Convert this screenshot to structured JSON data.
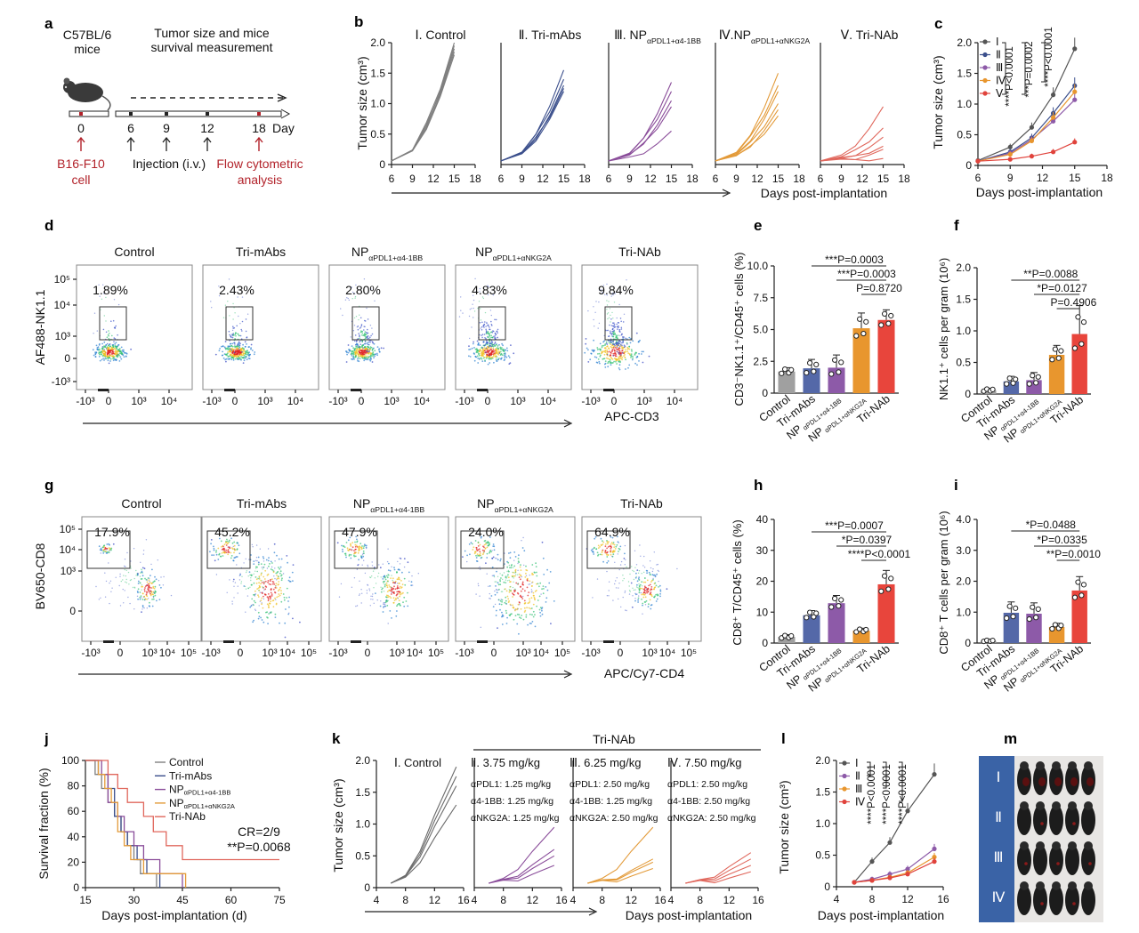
{
  "panels": {
    "a": {
      "letter": "a",
      "mouse_strain": [
        "C57BL/6",
        "mice"
      ],
      "measure_text": [
        "Tumor size and mice",
        "survival measurement"
      ],
      "days": [
        "0",
        "6",
        "9",
        "12",
        "18"
      ],
      "day_unit": "Day",
      "cell_label": [
        "B16-F10",
        "cell"
      ],
      "injection_label": "Injection (i.v.)",
      "flow_label": [
        "Flow cytometric",
        "analysis"
      ],
      "colors": {
        "accent": "#b2222a"
      }
    },
    "b": {
      "letter": "b",
      "ylabel": "Tumor size (cm³)",
      "xlabel": "Days post-implantation",
      "xticks": [
        "6",
        "9",
        "12",
        "15",
        "18"
      ],
      "yticks": [
        "0",
        "0.5",
        "1.0",
        "1.5",
        "2.0"
      ],
      "groups": [
        {
          "title": "Ⅰ. Control",
          "color": "#7f7f7f"
        },
        {
          "title": "Ⅱ. Tri-mAbs",
          "color": "#3b4f8c"
        },
        {
          "title": "Ⅲ. NP",
          "sub": "αPDL1+α4-1BB",
          "color": "#8a4d9a"
        },
        {
          "title": "Ⅳ.NP",
          "sub": "αPDL1+αNKG2A",
          "color": "#e39b3a"
        },
        {
          "title": "Ⅴ. Tri-NAb",
          "color": "#e0675c"
        }
      ]
    },
    "c": {
      "letter": "c",
      "ylabel": "Tumor size (cm³)",
      "xlabel": "Days post-implantation",
      "xticks": [
        "6",
        "9",
        "12",
        "15",
        "18"
      ],
      "yticks": [
        "0",
        "0.5",
        "1.0",
        "1.5",
        "2.0"
      ],
      "legend": [
        "Ⅰ",
        "Ⅱ",
        "Ⅲ",
        "Ⅳ",
        "Ⅴ"
      ],
      "stats": [
        "****P<0.0001",
        "***P=0.0002",
        "****P<0.0001"
      ]
    },
    "d": {
      "letter": "d",
      "plots": [
        {
          "title": "Control",
          "pct": "1.89%"
        },
        {
          "title": "Tri-mAbs",
          "pct": "2.43%"
        },
        {
          "title": "NP",
          "sub": "αPDL1+α4-1BB",
          "pct": "2.80%"
        },
        {
          "title": "NP",
          "sub": "αPDL1+αNKG2A",
          "pct": "4.83%"
        },
        {
          "title": "Tri-NAb",
          "pct": "9.84%"
        }
      ],
      "ylabel": "AF488-NK1.1",
      "xlabel": "APC-CD3",
      "yticks": [
        "10⁵",
        "10⁴",
        "10³",
        "0",
        "-10³"
      ],
      "xticks": [
        "-10³",
        "0",
        "10³",
        "10⁴"
      ]
    },
    "e": {
      "letter": "e",
      "ylabel": "CD3⁻NK1.1⁺/CD45⁺ cells (%)",
      "yticks": [
        "0",
        "2.5",
        "5.0",
        "7.5",
        "10.0"
      ],
      "stats": [
        "***P=0.0003",
        "***P=0.0003",
        "P=0.8720"
      ]
    },
    "f": {
      "letter": "f",
      "ylabel": "NK1.1⁺ cells per gram (10⁶)",
      "yticks": [
        "0",
        "0.5",
        "1.0",
        "1.5",
        "2.0"
      ],
      "stats": [
        "**P=0.0088",
        "*P=0.0127",
        "P=0.4906"
      ]
    },
    "g": {
      "letter": "g",
      "plots": [
        {
          "title": "Control",
          "pct": "17.9%"
        },
        {
          "title": "Tri-mAbs",
          "pct": "45.2%"
        },
        {
          "title": "NP",
          "sub": "αPDL1+α4-1BB",
          "pct": "47.9%"
        },
        {
          "title": "NP",
          "sub": "αPDL1+αNKG2A",
          "pct": "24.0%"
        },
        {
          "title": "Tri-NAb",
          "pct": "64.9%"
        }
      ],
      "ylabel": "BV650-CD8",
      "xlabel": "APC/Cy7-CD4",
      "yticks": [
        "10⁵",
        "10⁴",
        "10³",
        "0"
      ],
      "xticks": [
        "-10³",
        "0",
        "10³",
        "10⁴",
        "10⁵"
      ]
    },
    "h": {
      "letter": "h",
      "ylabel": "CD8⁺ T/CD45⁺ cells (%)",
      "yticks": [
        "0",
        "10",
        "20",
        "30",
        "40"
      ],
      "stats": [
        "***P=0.0007",
        "*P=0.0397",
        "****P<0.0001"
      ]
    },
    "i": {
      "letter": "i",
      "ylabel": "CD8⁺ T cells per gram (10⁶)",
      "yticks": [
        "0",
        "1.0",
        "2.0",
        "3.0",
        "4.0"
      ],
      "stats": [
        "*P=0.0488",
        "*P=0.0335",
        "**P=0.0010"
      ]
    },
    "bar_groups": [
      "Control",
      "Tri-mAbs",
      "NP αPDL1+α4-1BB",
      "NP αPDL1+αNKG2A",
      "Tri-NAb"
    ],
    "bar_colors": [
      "#a0a0a0",
      "#5468a8",
      "#8d5aa8",
      "#e8962e",
      "#e8453c"
    ],
    "j": {
      "letter": "j",
      "ylabel": "Survival fraction (%)",
      "xlabel": "Days post-implantation (d)",
      "xticks": [
        "15",
        "30",
        "45",
        "60",
        "75"
      ],
      "yticks": [
        "0",
        "20",
        "40",
        "60",
        "80",
        "100"
      ],
      "legend": [
        {
          "label": "Control",
          "color": "#7f7f7f"
        },
        {
          "label": "Tri-mAbs",
          "color": "#3b4f8c"
        },
        {
          "label": "NP",
          "sub": "αPDL1+α4-1BB",
          "color": "#8a4d9a"
        },
        {
          "label": "NP",
          "sub": "αPDL1+αNKG2A",
          "color": "#e39b3a"
        },
        {
          "label": "Tri-NAb",
          "color": "#e0675c"
        }
      ],
      "cr": "CR=2/9",
      "stat": "**P=0.0068"
    },
    "k": {
      "letter": "k",
      "header": "Tri-NAb",
      "ylabel": "Tumor size (cm³)",
      "xlabel": "Days post-implantation",
      "xticks": [
        "4",
        "8",
        "12",
        "16"
      ],
      "yticks": [
        "0",
        "0.5",
        "1.0",
        "1.5",
        "2.0"
      ],
      "groups": [
        {
          "title": "Ⅰ. Control",
          "color": "#6b6b6b",
          "doses": []
        },
        {
          "title": "Ⅱ. 3.75 mg/kg",
          "color": "#8a4d9a",
          "doses": [
            "αPDL1: 1.25 mg/kg",
            "α4-1BB: 1.25 mg/kg",
            "αNKG2A: 1.25 mg/kg"
          ]
        },
        {
          "title": "Ⅲ. 6.25 mg/kg",
          "color": "#e39b3a",
          "doses": [
            "αPDL1: 2.50 mg/kg",
            "α4-1BB: 1.25 mg/kg",
            "αNKG2A: 2.50 mg/kg"
          ]
        },
        {
          "title": "Ⅳ. 7.50 mg/kg",
          "color": "#e0675c",
          "doses": [
            "αPDL1: 2.50 mg/kg",
            "α4-1BB: 2.50 mg/kg",
            "αNKG2A: 2.50 mg/kg"
          ]
        }
      ]
    },
    "l": {
      "letter": "l",
      "ylabel": "Tumor size (cm³)",
      "xlabel": "Days post-implantation",
      "xticks": [
        "4",
        "8",
        "12",
        "16"
      ],
      "yticks": [
        "0",
        "0.5",
        "1.0",
        "1.5",
        "2.0"
      ],
      "legend": [
        "Ⅰ",
        "Ⅱ",
        "Ⅲ",
        "Ⅳ"
      ],
      "stats": [
        "****P<0.0001",
        "****P<0.0001",
        "****P<0.0001"
      ]
    },
    "m": {
      "letter": "m",
      "rows": [
        "Ⅰ",
        "Ⅱ",
        "Ⅲ",
        "Ⅳ"
      ],
      "colors": {
        "panel_bg": "#3a63a6"
      }
    }
  },
  "chart_data": [
    {
      "type": "line",
      "title": "c",
      "xlabel": "Days post-implantation",
      "ylabel": "Tumor size (cm³)",
      "x": [
        6,
        9,
        11,
        13,
        15
      ],
      "xlim": [
        6,
        18
      ],
      "ylim": [
        0,
        2.0
      ],
      "series": [
        {
          "name": "Ⅰ",
          "values": [
            0.08,
            0.3,
            0.62,
            1.15,
            1.9
          ],
          "color": "#555555"
        },
        {
          "name": "Ⅱ",
          "values": [
            0.07,
            0.22,
            0.45,
            0.85,
            1.3
          ],
          "color": "#3b4f8c"
        },
        {
          "name": "Ⅲ",
          "values": [
            0.07,
            0.2,
            0.42,
            0.72,
            1.07
          ],
          "color": "#8d5aa8"
        },
        {
          "name": "Ⅳ",
          "values": [
            0.07,
            0.18,
            0.4,
            0.78,
            1.2
          ],
          "color": "#e8962e"
        },
        {
          "name": "Ⅴ",
          "values": [
            0.07,
            0.1,
            0.15,
            0.22,
            0.38
          ],
          "color": "#e0433c"
        }
      ]
    },
    {
      "type": "bar",
      "title": "e",
      "ylabel": "CD3⁻NK1.1⁺/CD45⁺ cells (%)",
      "categories": [
        "Control",
        "Tri-mAbs",
        "NP αPDL1+α4-1BB",
        "NP αPDL1+αNKG2A",
        "Tri-NAb"
      ],
      "values": [
        1.7,
        1.95,
        2.0,
        5.1,
        5.75
      ],
      "errors": [
        0.3,
        0.7,
        1.0,
        1.2,
        0.8
      ],
      "ylim": [
        0,
        10
      ]
    },
    {
      "type": "bar",
      "title": "f",
      "ylabel": "NK1.1⁺ cells per gram (10⁶)",
      "categories": [
        "Control",
        "Tri-mAbs",
        "NP αPDL1+α4-1BB",
        "NP αPDL1+αNKG2A",
        "Tri-NAb"
      ],
      "values": [
        0.06,
        0.2,
        0.22,
        0.62,
        0.95
      ],
      "errors": [
        0.03,
        0.08,
        0.12,
        0.15,
        0.45
      ],
      "ylim": [
        0,
        2.0
      ]
    },
    {
      "type": "bar",
      "title": "h",
      "ylabel": "CD8⁺ T/CD45⁺ cells (%)",
      "categories": [
        "Control",
        "Tri-mAbs",
        "NP αPDL1+α4-1BB",
        "NP αPDL1+αNKG2A",
        "Tri-NAb"
      ],
      "values": [
        2.0,
        9.0,
        12.9,
        4.0,
        19.0
      ],
      "errors": [
        0.7,
        1.5,
        2.5,
        0.8,
        4.5
      ],
      "ylim": [
        0,
        40
      ]
    },
    {
      "type": "bar",
      "title": "i",
      "ylabel": "CD8⁺ T cells per gram (10⁶)",
      "categories": [
        "Control",
        "Tri-mAbs",
        "NP αPDL1+α4-1BB",
        "NP αPDL1+αNKG2A",
        "Tri-NAb"
      ],
      "values": [
        0.07,
        0.98,
        0.95,
        0.52,
        1.7
      ],
      "errors": [
        0.03,
        0.35,
        0.35,
        0.12,
        0.45
      ],
      "ylim": [
        0,
        4.0
      ]
    },
    {
      "type": "line",
      "title": "l",
      "xlabel": "Days post-implantation",
      "ylabel": "Tumor size (cm³)",
      "x": [
        6,
        8,
        10,
        12,
        15
      ],
      "xlim": [
        4,
        16
      ],
      "ylim": [
        0,
        2.0
      ],
      "series": [
        {
          "name": "Ⅰ",
          "values": [
            0.07,
            0.4,
            0.7,
            1.2,
            1.78
          ],
          "color": "#555555"
        },
        {
          "name": "Ⅱ",
          "values": [
            0.07,
            0.12,
            0.2,
            0.28,
            0.6
          ],
          "color": "#8d5aa8"
        },
        {
          "name": "Ⅲ",
          "values": [
            0.07,
            0.1,
            0.15,
            0.22,
            0.47
          ],
          "color": "#e8962e"
        },
        {
          "name": "Ⅳ",
          "values": [
            0.07,
            0.1,
            0.14,
            0.2,
            0.4
          ],
          "color": "#e0433c"
        }
      ]
    },
    {
      "type": "line",
      "title": "j",
      "xlabel": "Days post-implantation (d)",
      "ylabel": "Survival fraction (%)",
      "xlim": [
        15,
        75
      ],
      "ylim": [
        0,
        100
      ],
      "series": [
        {
          "name": "Control",
          "x": [
            15,
            18,
            20,
            22,
            24,
            26,
            28,
            30,
            32,
            34,
            37
          ],
          "values": [
            100,
            89,
            78,
            67,
            56,
            44,
            33,
            22,
            11,
            11,
            0
          ]
        },
        {
          "name": "Tri-mAbs",
          "x": [
            15,
            19,
            22,
            24,
            26,
            28,
            31,
            34,
            38
          ],
          "values": [
            100,
            89,
            78,
            56,
            44,
            33,
            22,
            11,
            0
          ]
        },
        {
          "name": "NP αPDL1+α4-1BB",
          "x": [
            15,
            20,
            22,
            25,
            27,
            30,
            33,
            38,
            45
          ],
          "values": [
            100,
            89,
            67,
            56,
            44,
            33,
            22,
            11,
            0
          ]
        },
        {
          "name": "NP αPDL1+αNKG2A",
          "x": [
            15,
            19,
            21,
            23,
            25,
            27,
            29,
            33,
            40,
            46
          ],
          "values": [
            100,
            89,
            78,
            67,
            44,
            33,
            22,
            11,
            11,
            0
          ]
        },
        {
          "name": "Tri-NAb",
          "x": [
            15,
            22,
            25,
            28,
            33,
            36,
            40,
            45,
            59,
            75
          ],
          "values": [
            100,
            89,
            78,
            67,
            56,
            44,
            33,
            22,
            22,
            22
          ]
        }
      ]
    }
  ]
}
